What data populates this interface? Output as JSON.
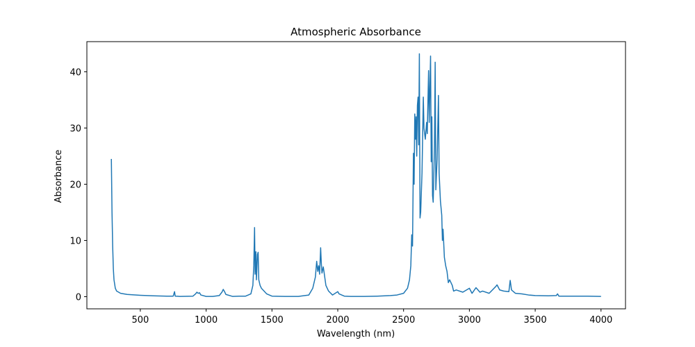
{
  "chart_data": {
    "type": "line",
    "title": "Atmospheric Absorbance",
    "xlabel": "Wavelength (nm)",
    "ylabel": "Absorbance",
    "xlim": [
      94,
      4186
    ],
    "ylim": [
      -2.16,
      45.36
    ],
    "xticks": [
      500,
      1000,
      1500,
      2000,
      2500,
      3000,
      3500,
      4000
    ],
    "yticks": [
      0,
      10,
      20,
      30,
      40
    ],
    "grid": false,
    "series": [
      {
        "color": "#1f77b4",
        "x": [
          280,
          285,
          290,
          295,
          300,
          310,
          320,
          350,
          400,
          500,
          600,
          700,
          750,
          760,
          765,
          800,
          900,
          920,
          930,
          940,
          950,
          960,
          1000,
          1050,
          1100,
          1120,
          1130,
          1140,
          1150,
          1200,
          1250,
          1300,
          1340,
          1355,
          1362,
          1368,
          1372,
          1378,
          1382,
          1390,
          1395,
          1400,
          1410,
          1420,
          1440,
          1460,
          1500,
          1600,
          1700,
          1780,
          1810,
          1830,
          1840,
          1848,
          1855,
          1862,
          1870,
          1875,
          1880,
          1890,
          1895,
          1910,
          1930,
          1960,
          2000,
          2010,
          2050,
          2100,
          2200,
          2300,
          2400,
          2450,
          2500,
          2530,
          2545,
          2555,
          2562,
          2568,
          2575,
          2580,
          2585,
          2590,
          2595,
          2600,
          2605,
          2610,
          2615,
          2620,
          2625,
          2630,
          2640,
          2650,
          2655,
          2665,
          2675,
          2680,
          2690,
          2695,
          2705,
          2710,
          2715,
          2720,
          2725,
          2735,
          2740,
          2745,
          2755,
          2765,
          2770,
          2780,
          2790,
          2795,
          2800,
          2810,
          2820,
          2830,
          2840,
          2850,
          2870,
          2880,
          2900,
          2950,
          3000,
          3020,
          3050,
          3080,
          3100,
          3150,
          3200,
          3210,
          3230,
          3260,
          3300,
          3310,
          3320,
          3350,
          3400,
          3450,
          3500,
          3600,
          3660,
          3670,
          3680,
          3800,
          3900,
          4000
        ],
        "values": [
          24.5,
          15,
          9,
          5,
          3,
          1.5,
          1,
          0.6,
          0.4,
          0.25,
          0.15,
          0.1,
          0.1,
          0.9,
          0.1,
          0.05,
          0.1,
          0.5,
          0.8,
          0.6,
          0.7,
          0.3,
          0.05,
          0.05,
          0.2,
          0.8,
          1.3,
          0.9,
          0.4,
          0.05,
          0.1,
          0.1,
          0.5,
          2,
          5.5,
          12.3,
          4,
          8,
          3,
          7.5,
          7.9,
          3,
          2,
          1.5,
          1,
          0.5,
          0.1,
          0.05,
          0.05,
          0.3,
          1.5,
          3.5,
          6.3,
          4.5,
          5.5,
          4,
          8.7,
          6,
          4.2,
          5.3,
          4.5,
          2,
          1,
          0.3,
          0.9,
          0.5,
          0.1,
          0.05,
          0.05,
          0.1,
          0.2,
          0.3,
          0.6,
          1.5,
          3,
          5.5,
          11,
          9,
          25.5,
          20,
          32.5,
          28,
          32,
          25,
          34,
          35.5,
          27,
          43.2,
          14,
          15,
          22,
          35.5,
          30,
          28,
          31,
          29,
          40.2,
          31,
          42.8,
          24,
          32,
          18,
          16.8,
          27,
          41.7,
          19,
          24.5,
          35.8,
          22,
          17,
          14.5,
          10,
          12,
          7,
          5.5,
          4.5,
          2.5,
          3,
          2,
          1,
          1.2,
          0.8,
          1.5,
          0.6,
          1.6,
          0.8,
          1,
          0.6,
          1.8,
          2.1,
          1.2,
          1,
          0.9,
          2.9,
          1.2,
          0.6,
          0.5,
          0.3,
          0.2,
          0.15,
          0.2,
          0.5,
          0.1,
          0.1,
          0.1,
          0.05
        ]
      }
    ]
  }
}
